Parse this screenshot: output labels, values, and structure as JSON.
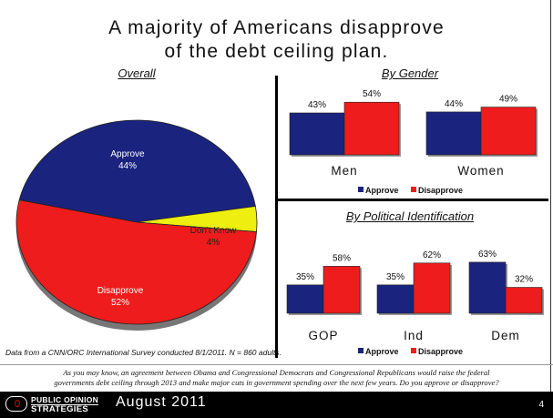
{
  "title_line1": "A majority of Americans disapprove",
  "title_line2": "of the debt ceiling plan.",
  "colors": {
    "approve": "#1a237e",
    "disapprove": "#ee1c1c",
    "dont_know": "#eeee10"
  },
  "chart_data": [
    {
      "type": "pie",
      "title": "Overall",
      "slices": [
        {
          "label": "Approve",
          "value": 44,
          "value_label": "44%"
        },
        {
          "label": "Don't Know",
          "value": 4,
          "value_label": "4%"
        },
        {
          "label": "Disapprove",
          "value": 52,
          "value_label": "52%"
        }
      ]
    },
    {
      "type": "bar",
      "title": "By Gender",
      "categories": [
        "Men",
        "Women"
      ],
      "series": [
        {
          "name": "Approve",
          "values": [
            43,
            44
          ],
          "labels": [
            "43%",
            "44%"
          ]
        },
        {
          "name": "Disapprove",
          "values": [
            54,
            49
          ],
          "labels": [
            "54%",
            "49%"
          ]
        }
      ],
      "legend": "bottom"
    },
    {
      "type": "bar",
      "title": "By Political Identification",
      "categories": [
        "GOP",
        "Ind",
        "Dem"
      ],
      "series": [
        {
          "name": "Approve",
          "values": [
            35,
            35,
            63
          ],
          "labels": [
            "35%",
            "35%",
            "63%"
          ]
        },
        {
          "name": "Disapprove",
          "values": [
            58,
            62,
            32
          ],
          "labels": [
            "58%",
            "62%",
            "32%"
          ]
        }
      ],
      "legend": "bottom"
    }
  ],
  "source_note": "Data from a CNN/ORC International Survey conducted 8/1/2011. N = 860 adults.",
  "question_line1": "As you may know, an agreement between Obama and Congressional Democrats and Congressional Republicans would raise the federal",
  "question_line2": "governments debt ceiling through 2013 and make major cuts in government spending over the next few years. Do you approve or disapprove?",
  "footer": {
    "brand_line1": "PUBLIC OPINION",
    "brand_line2": "STRATEGIES",
    "date": "August 2011",
    "page": "4"
  }
}
